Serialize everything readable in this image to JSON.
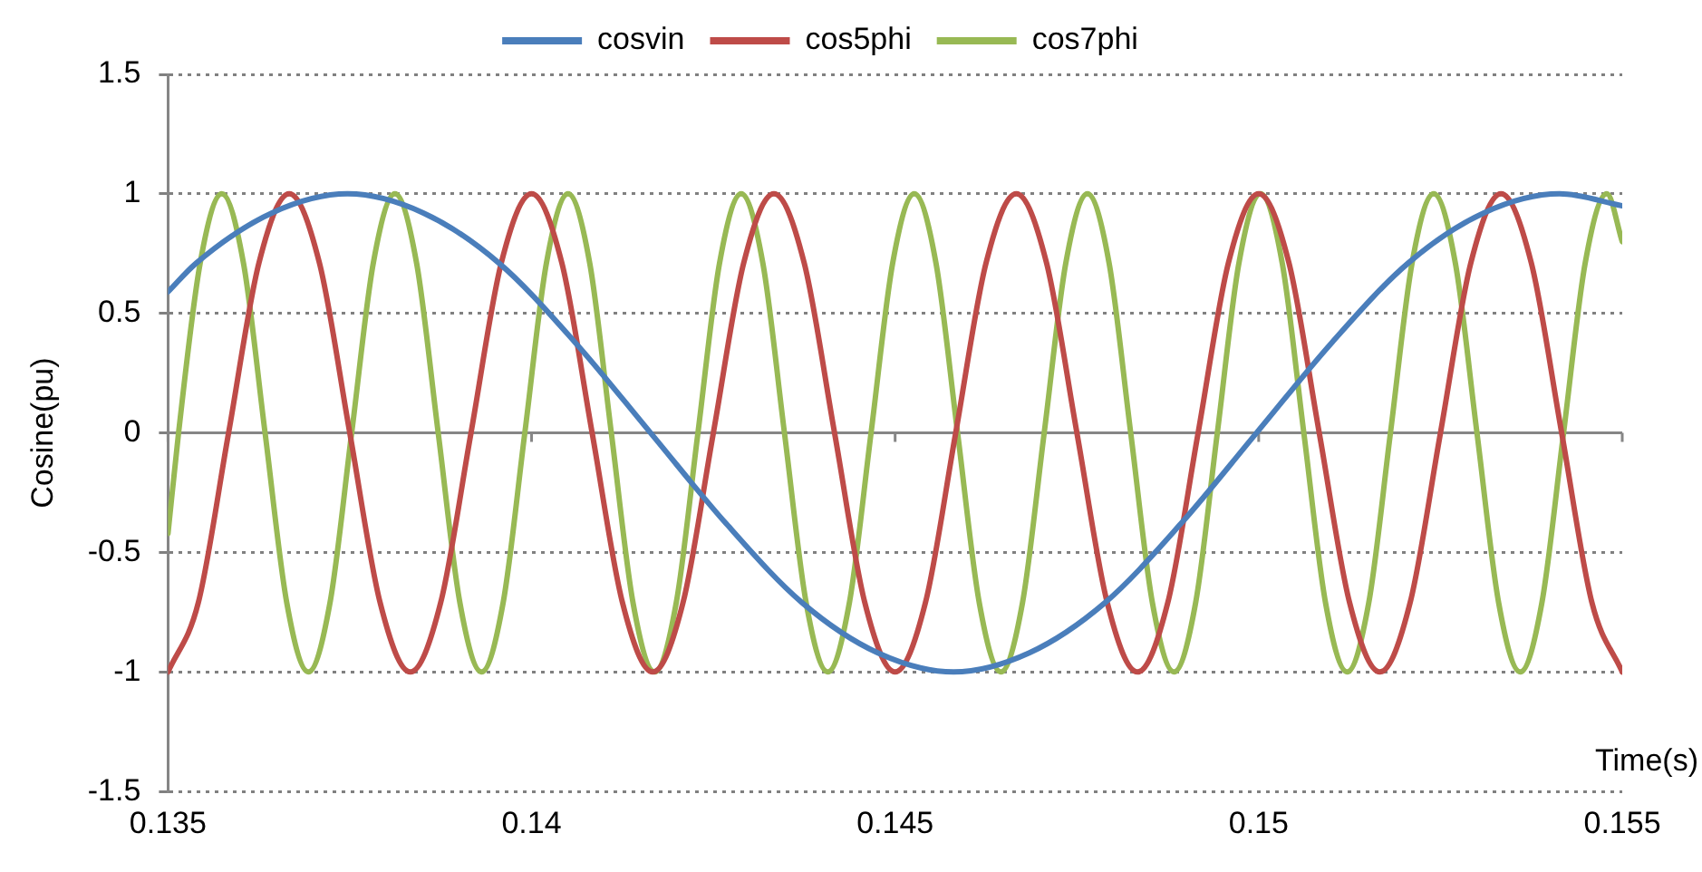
{
  "chart_data": {
    "type": "line",
    "xlabel": "Time(s)",
    "ylabel": "Cosine(pu)",
    "xlim": [
      0.135,
      0.155
    ],
    "xticks": [
      0.135,
      0.14,
      0.145,
      0.15,
      0.155
    ],
    "ylim": [
      -1.5,
      1.5
    ],
    "yticks": [
      -1.5,
      -1,
      -0.5,
      0,
      0.5,
      1,
      1.5
    ],
    "grid": "y",
    "legend": "top",
    "marker": "none",
    "line_style": "solid",
    "series": [
      {
        "name": "cosvin",
        "color": "#4a7ebb",
        "x": [
          0.135,
          0.135387,
          0.136428,
          0.13747,
          0.138512,
          0.139553,
          0.140595,
          0.141637,
          0.142678,
          0.14372,
          0.144762,
          0.145803,
          0.146845,
          0.147887,
          0.148929,
          0.14997,
          0.151012,
          0.152054,
          0.153095,
          0.154137,
          0.155
        ],
        "values": [
          0.59,
          0.71,
          0.92,
          1,
          0.92,
          0.71,
          0.38,
          0,
          -0.38,
          -0.71,
          -0.92,
          -1,
          -0.92,
          -0.71,
          -0.38,
          0,
          0.38,
          0.71,
          0.92,
          1,
          0.95
        ]
      },
      {
        "name": "cos5phi",
        "color": "#be4b48",
        "x": [
          0.135,
          0.135417,
          0.135833,
          0.13625,
          0.136667,
          0.137083,
          0.1375,
          0.137917,
          0.138333,
          0.13875,
          0.139167,
          0.139583,
          0.14,
          0.140417,
          0.140833,
          0.14125,
          0.141667,
          0.142083,
          0.1425,
          0.142917,
          0.143333,
          0.14375,
          0.144167,
          0.144583,
          0.145,
          0.145417,
          0.145833,
          0.14625,
          0.146667,
          0.147083,
          0.1475,
          0.147917,
          0.148333,
          0.14875,
          0.149167,
          0.149583,
          0.15,
          0.150417,
          0.150833,
          0.15125,
          0.151667,
          0.152083,
          0.1525,
          0.152917,
          0.153333,
          0.15375,
          0.154167,
          0.154583,
          0.155
        ],
        "values": [
          -1,
          -0.71,
          0,
          0.71,
          1,
          0.71,
          0,
          -0.71,
          -1,
          -0.71,
          0,
          0.71,
          1,
          0.71,
          0,
          -0.71,
          -1,
          -0.71,
          0,
          0.71,
          1,
          0.71,
          0,
          -0.71,
          -1,
          -0.71,
          0,
          0.71,
          1,
          0.71,
          0,
          -0.71,
          -1,
          -0.71,
          0,
          0.71,
          1,
          0.71,
          0,
          -0.71,
          -1,
          -0.71,
          0,
          0.71,
          1,
          0.71,
          0,
          -0.71,
          -1
        ]
      },
      {
        "name": "cos7phi",
        "color": "#98b954",
        "x": [
          0.135,
          0.135145,
          0.135442,
          0.13574,
          0.136038,
          0.136335,
          0.136633,
          0.13693,
          0.137228,
          0.137526,
          0.137823,
          0.138121,
          0.138419,
          0.138716,
          0.139014,
          0.139311,
          0.139609,
          0.139907,
          0.140204,
          0.140502,
          0.1408,
          0.141097,
          0.141395,
          0.141692,
          0.14199,
          0.142288,
          0.142585,
          0.142883,
          0.143181,
          0.143478,
          0.143776,
          0.144073,
          0.144371,
          0.144669,
          0.144966,
          0.145264,
          0.145562,
          0.145859,
          0.146157,
          0.146454,
          0.146752,
          0.14705,
          0.147347,
          0.147645,
          0.147943,
          0.14824,
          0.148538,
          0.148835,
          0.149133,
          0.149431,
          0.149728,
          0.150026,
          0.150324,
          0.150621,
          0.150919,
          0.151216,
          0.151514,
          0.151812,
          0.152109,
          0.152407,
          0.152705,
          0.153002,
          0.1533,
          0.153597,
          0.153895,
          0.154193,
          0.15449,
          0.154788,
          0.155
        ],
        "values": [
          -0.42,
          0,
          0.71,
          1,
          0.71,
          0,
          -0.71,
          -1,
          -0.71,
          0,
          0.71,
          1,
          0.71,
          0,
          -0.71,
          -1,
          -0.71,
          0,
          0.71,
          1,
          0.71,
          0,
          -0.71,
          -1,
          -0.71,
          0,
          0.71,
          1,
          0.71,
          0,
          -0.71,
          -1,
          -0.71,
          0,
          0.71,
          1,
          0.71,
          0,
          -0.71,
          -1,
          -0.71,
          0,
          0.71,
          1,
          0.71,
          0,
          -0.71,
          -1,
          -0.71,
          0,
          0.71,
          1,
          0.71,
          0,
          -0.71,
          -1,
          -0.71,
          0,
          0.71,
          1,
          0.71,
          0,
          -0.71,
          -1,
          -0.71,
          0,
          0.71,
          1,
          0.8
        ]
      }
    ]
  }
}
